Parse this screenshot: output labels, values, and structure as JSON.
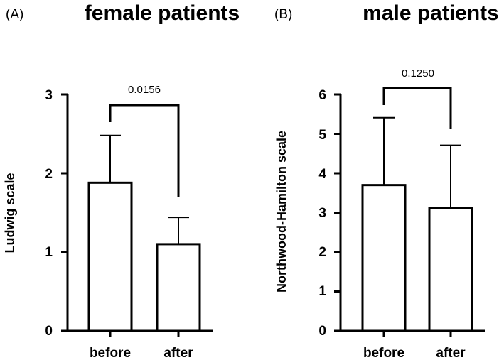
{
  "chart_data": [
    {
      "type": "bar",
      "panel_label": "(A)",
      "title": "female patients",
      "ylabel": "Ludwig scale",
      "xlabel": "",
      "categories": [
        "before",
        "after"
      ],
      "values": [
        1.88,
        1.1
      ],
      "error": [
        0.6,
        0.34
      ],
      "ylim": [
        0,
        3
      ],
      "yticks": [
        "0",
        "1",
        "2",
        "3"
      ],
      "comparison": {
        "label": "0.0156",
        "pairs": [
          "before",
          "after"
        ]
      }
    },
    {
      "type": "bar",
      "panel_label": "(B)",
      "title": "male patients",
      "ylabel": "Northwood-Hamilton scale",
      "xlabel": "",
      "categories": [
        "before",
        "after"
      ],
      "values": [
        3.7,
        3.12
      ],
      "error": [
        1.71,
        1.59
      ],
      "ylim": [
        0,
        6
      ],
      "yticks": [
        "0",
        "1",
        "2",
        "3",
        "4",
        "5",
        "6"
      ],
      "comparison": {
        "label": "0.1250",
        "pairs": [
          "before",
          "after"
        ]
      }
    }
  ]
}
